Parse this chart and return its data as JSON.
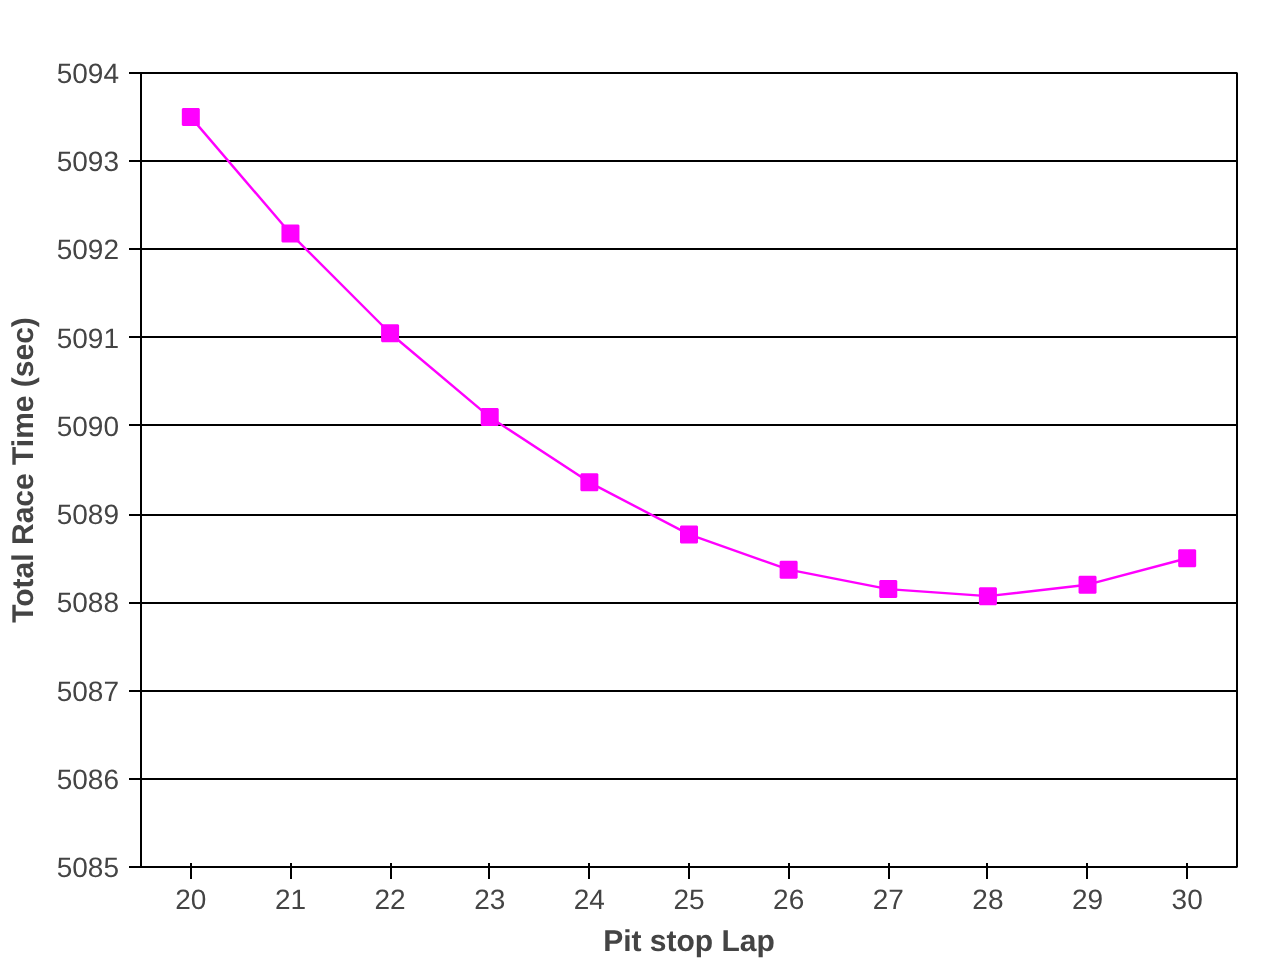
{
  "chart_data": {
    "type": "line",
    "xlabel": "Pit stop Lap",
    "ylabel": "Total Race Time (sec)",
    "categories": [
      "20",
      "21",
      "22",
      "23",
      "24",
      "25",
      "26",
      "27",
      "28",
      "29",
      "30"
    ],
    "series": [
      {
        "color": "#ff00ff",
        "values": [
          5093.5,
          5092.18,
          5091.05,
          5090.1,
          5089.36,
          5088.77,
          5088.37,
          5088.15,
          5088.07,
          5088.2,
          5088.5
        ]
      }
    ],
    "ylim": [
      5085,
      5094
    ],
    "yticks": [
      5085,
      5086,
      5087,
      5088,
      5089,
      5090,
      5091,
      5092,
      5093,
      5094
    ],
    "grid": "y",
    "marker": "square",
    "line_style": "solid"
  }
}
